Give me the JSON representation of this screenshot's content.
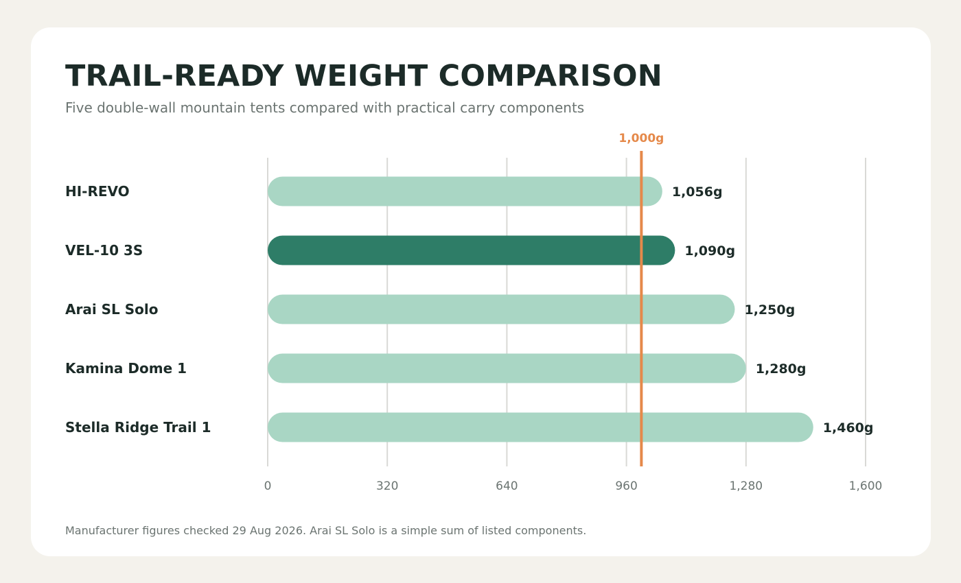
{
  "title": "TRAIL-READY WEIGHT COMPARISON",
  "subtitle": "Five double-wall mountain tents compared with practical carry components",
  "footnote": "Manufacturer figures checked 29 Aug 2026. Arai SL Solo is a simple sum of listed components.",
  "chart_data": {
    "type": "bar",
    "orientation": "horizontal",
    "categories": [
      "HI-REVO",
      "VEL-10 3S",
      "Arai SL Solo",
      "Kamina Dome 1",
      "Stella Ridge Trail 1"
    ],
    "values": [
      1056,
      1090,
      1250,
      1280,
      1460
    ],
    "value_labels": [
      "1,056g",
      "1,090g",
      "1,250g",
      "1,280g",
      "1,460g"
    ],
    "highlighted": "VEL-10 3S",
    "xlim": [
      0,
      1600
    ],
    "ticks": [
      0,
      320,
      640,
      960,
      1280,
      1600
    ],
    "tick_labels": [
      "0",
      "320",
      "640",
      "960",
      "1,280",
      "1,600"
    ],
    "reference_line": {
      "value": 1000,
      "label": "1,000g"
    },
    "grid": true,
    "legend": "none",
    "colors": {
      "bar": "#a9d6c4",
      "bar_highlight": "#2e7d67",
      "reference": "#e5894a",
      "grid": "#d9d9d6"
    }
  }
}
